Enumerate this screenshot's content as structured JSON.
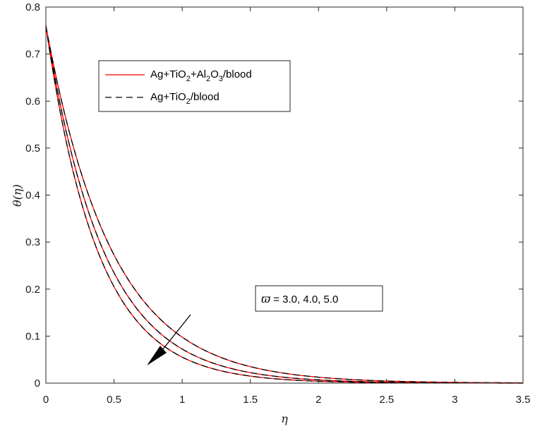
{
  "chart_data": {
    "type": "line",
    "xlabel": "η",
    "ylabel": "θ(η)",
    "xlim": [
      0,
      3.5
    ],
    "ylim": [
      0,
      0.8
    ],
    "x_ticks": [
      "0",
      "0.5",
      "1",
      "1.5",
      "2",
      "2.5",
      "3",
      "3.5"
    ],
    "y_ticks": [
      "0",
      "0.1",
      "0.2",
      "0.3",
      "0.4",
      "0.5",
      "0.6",
      "0.7",
      "0.8"
    ],
    "grid": false,
    "legend_position": "top-left",
    "legend": [
      {
        "parts": [
          [
            "Ag+TiO",
            "n"
          ],
          [
            "2",
            "s"
          ],
          [
            "+Al",
            "n"
          ],
          [
            "2",
            "s"
          ],
          [
            "O",
            "n"
          ],
          [
            "3",
            "s"
          ],
          [
            "/blood",
            "n"
          ]
        ],
        "color": "#ff0000",
        "dash": "solid"
      },
      {
        "parts": [
          [
            "Ag+TiO",
            "n"
          ],
          [
            "2",
            "s"
          ],
          [
            "/blood",
            "n"
          ]
        ],
        "color": "#000000",
        "dash": "dashed"
      }
    ],
    "annotation": {
      "symbol": "ϖ",
      "text": " = 3.0, 4.0, 5.0",
      "arrow": "points toward decreasing θ as ϖ increases"
    },
    "series_groups": [
      {
        "parameter": "ϖ = 3.0",
        "y0": 0.76,
        "decay": 2.05
      },
      {
        "parameter": "ϖ = 4.0",
        "y0": 0.76,
        "decay": 2.35
      },
      {
        "parameter": "ϖ = 5.0",
        "y0": 0.76,
        "decay": 2.62
      }
    ],
    "sample_points": {
      "x": [
        0,
        0.5,
        1.0,
        1.5,
        2.0,
        2.5,
        3.0,
        3.5
      ],
      "phi_3_0": [
        0.76,
        0.27,
        0.098,
        0.035,
        0.013,
        0.004,
        0.002,
        0.0
      ],
      "phi_4_0": [
        0.76,
        0.235,
        0.072,
        0.022,
        0.007,
        0.002,
        0.001,
        0.0
      ],
      "phi_5_0": [
        0.76,
        0.205,
        0.055,
        0.015,
        0.004,
        0.001,
        0.0,
        0.0
      ]
    },
    "colors": {
      "hybrid": "#ff0000",
      "nano": "#000000"
    }
  }
}
